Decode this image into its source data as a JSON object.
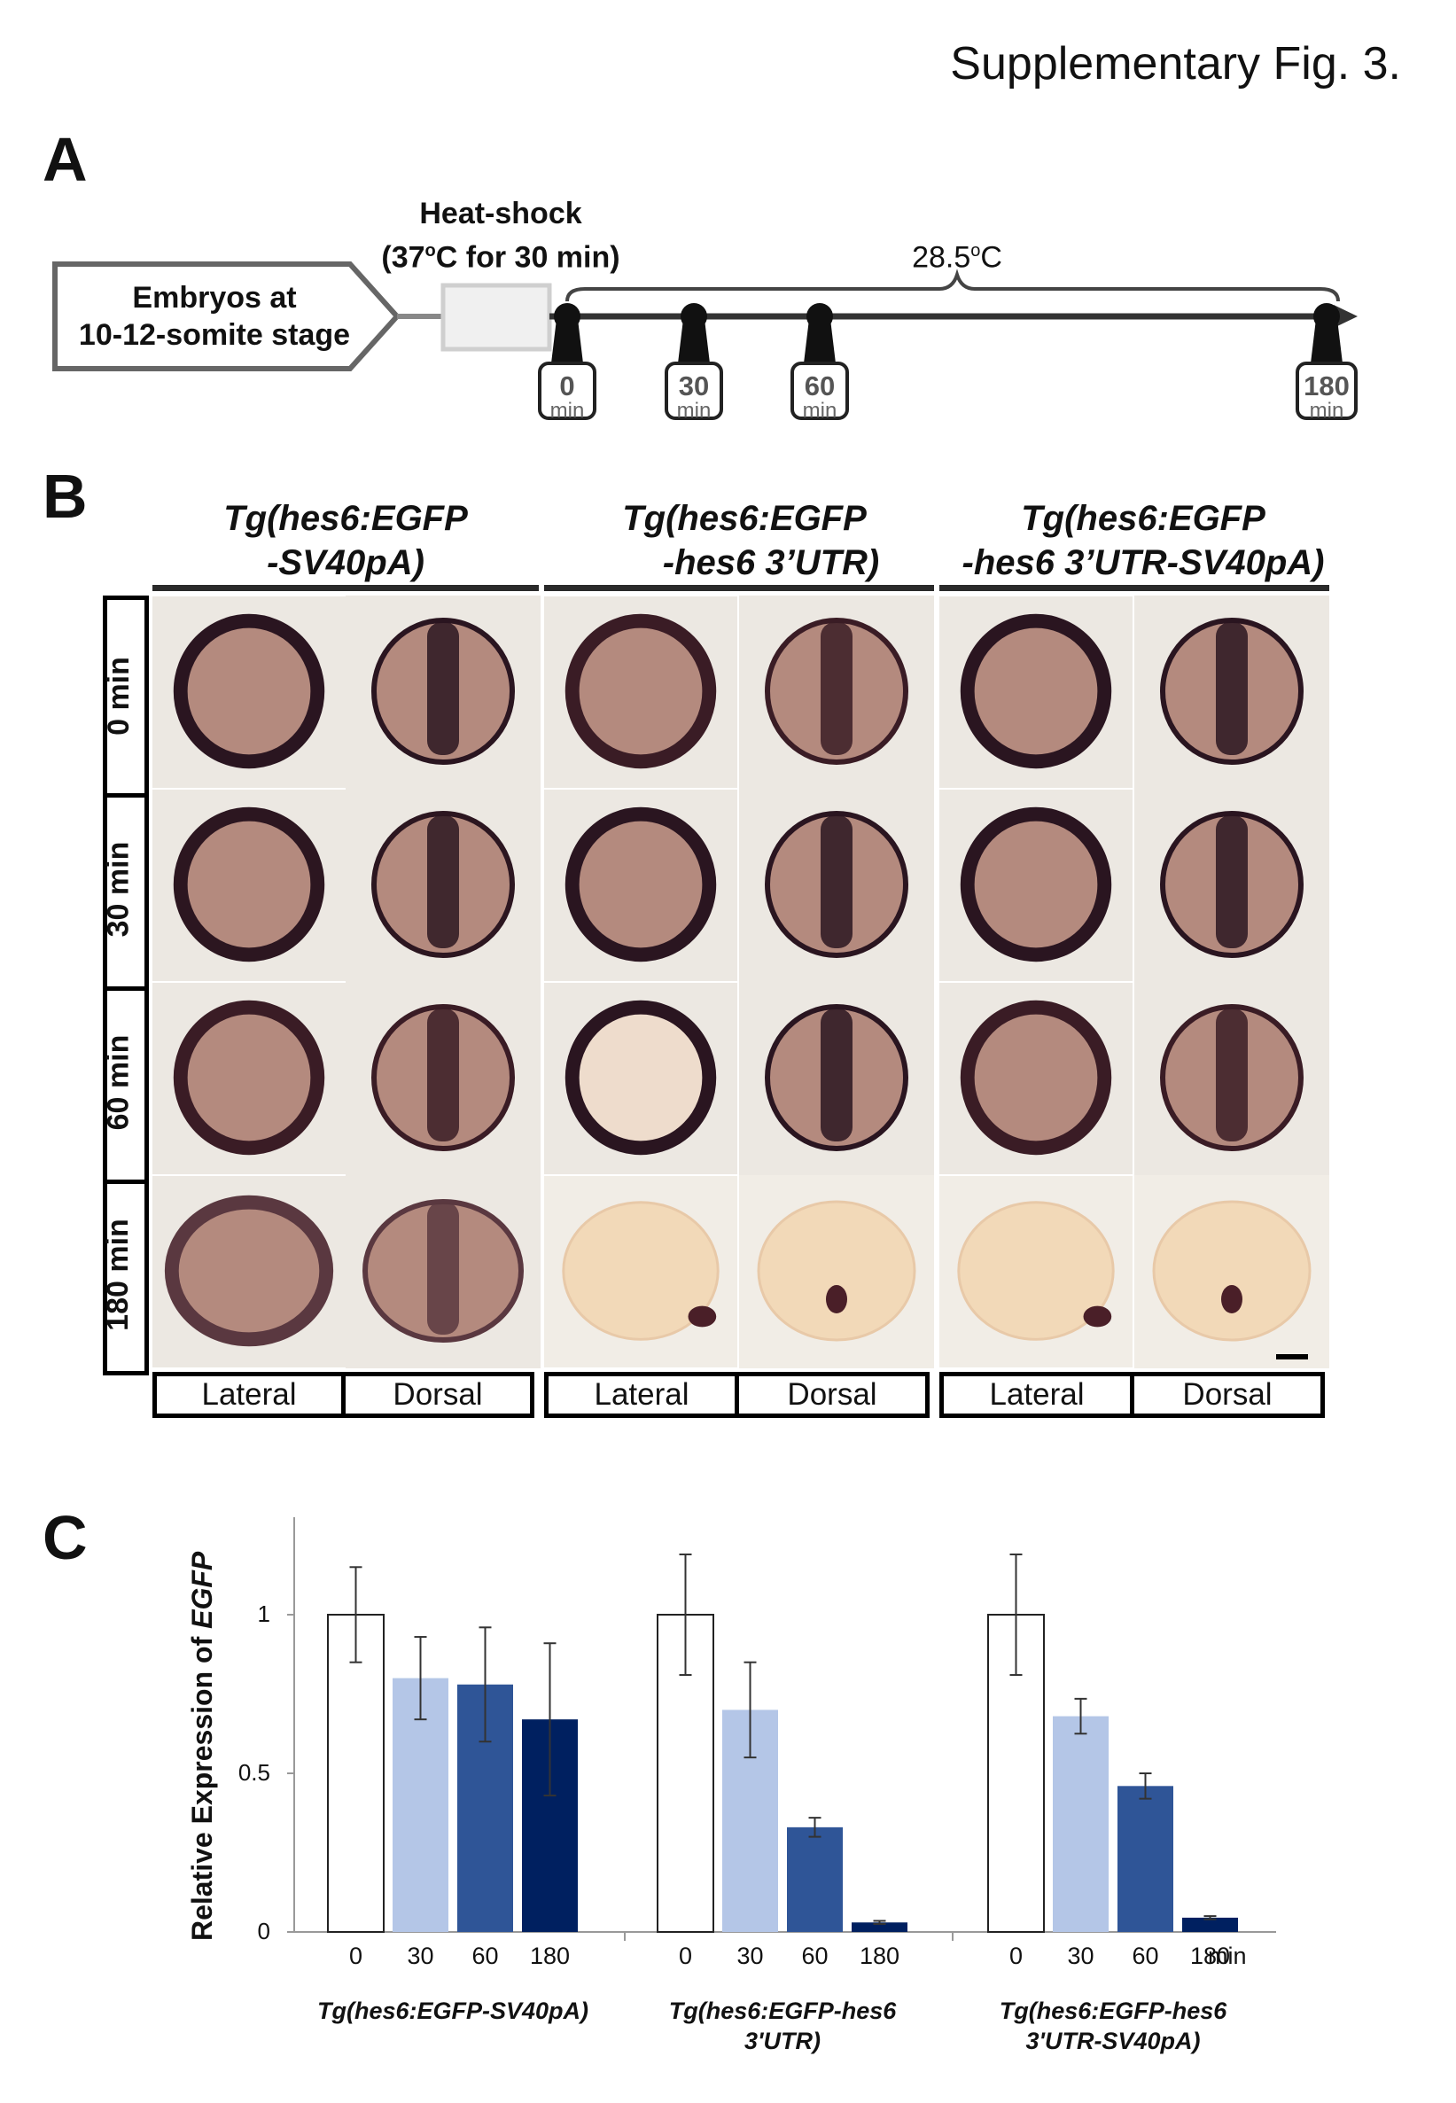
{
  "figure_title": "Supplementary Fig. 3.",
  "panels": {
    "a": "A",
    "b": "B",
    "c": "C"
  },
  "panel_a": {
    "embryo_box": [
      "Embryos at",
      "10-12-somite stage"
    ],
    "heatshock": "Heat-shock",
    "heatshock_cond_pre": "(37",
    "heatshock_cond_sup": "o",
    "heatshock_cond_post": "C for 30 min)",
    "temp_main": "28.5",
    "temp_sup": "o",
    "temp_post": "C",
    "timepoints": [
      {
        "value": "0",
        "unit": "min"
      },
      {
        "value": "30",
        "unit": "min"
      },
      {
        "value": "60",
        "unit": "min"
      },
      {
        "value": "180",
        "unit": "min"
      }
    ]
  },
  "panel_b": {
    "strains": [
      {
        "line1": "Tg(hes6:EGFP",
        "line2": "-SV40pA)"
      },
      {
        "line1": "Tg(hes6:EGFP",
        "line2": "-hes6 3’UTR)"
      },
      {
        "line1": "Tg(hes6:EGFP",
        "line2": "-hes6 3’UTR-SV40pA)"
      }
    ],
    "times": [
      "0 min",
      "30 min",
      "60 min",
      "180 min"
    ],
    "views": [
      "Lateral",
      "Dorsal",
      "Lateral",
      "Dorsal",
      "Lateral",
      "Dorsal"
    ]
  },
  "chart_data": {
    "type": "bar",
    "ylabel_pre": "Relative Expression of ",
    "ylabel_italic": "EGFP",
    "yticks": [
      "0",
      "0.5",
      "1"
    ],
    "ylim": [
      0,
      1.3
    ],
    "x_unit": "min",
    "categories": [
      "0",
      "30",
      "60",
      "180"
    ],
    "colors": [
      "#ffffff",
      "#b4c6e7",
      "#2f5597",
      "#002060"
    ],
    "groups": [
      {
        "name_lines": [
          "Tg(hes6:EGFP-SV40pA)"
        ],
        "values": [
          1.0,
          0.8,
          0.78,
          0.67
        ],
        "errors": [
          0.15,
          0.13,
          0.18,
          0.24
        ]
      },
      {
        "name_lines": [
          "Tg(hes6:EGFP-hes6",
          "3'UTR)"
        ],
        "values": [
          1.0,
          0.7,
          0.33,
          0.03
        ],
        "errors": [
          0.19,
          0.15,
          0.03,
          0.005
        ]
      },
      {
        "name_lines": [
          "Tg(hes6:EGFP-hes6",
          "3'UTR-SV40pA)"
        ],
        "values": [
          1.0,
          0.68,
          0.46,
          0.045
        ],
        "errors": [
          0.19,
          0.055,
          0.04,
          0.005
        ]
      }
    ]
  }
}
